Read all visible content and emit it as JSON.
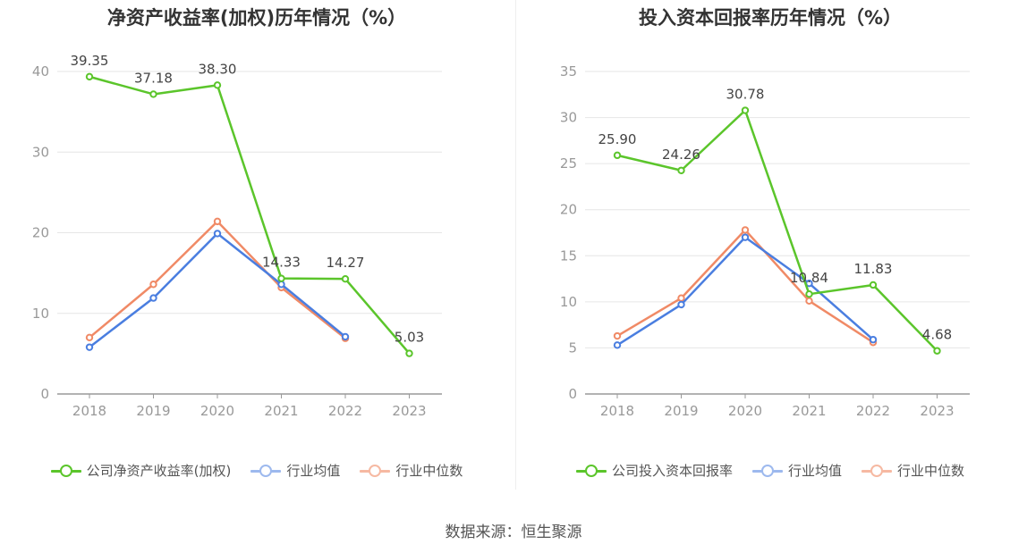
{
  "source": "数据来源：恒生聚源",
  "colors": {
    "company": "#5bc52b",
    "avg": "#4a7ee0",
    "median": "#f08a66"
  },
  "chart_data": [
    {
      "type": "line",
      "title": "净资产收益率(加权)历年情况（%）",
      "categories": [
        "2018",
        "2019",
        "2020",
        "2021",
        "2022",
        "2023"
      ],
      "ylim": [
        0,
        40
      ],
      "yticks": [
        0,
        10,
        20,
        30,
        40
      ],
      "grid": true,
      "legend_position": "bottom",
      "series": [
        {
          "name": "公司净资产收益率(加权)",
          "values": [
            39.35,
            37.18,
            38.3,
            14.33,
            14.27,
            5.03
          ],
          "labels": [
            "39.35",
            "37.18",
            "38.30",
            "14.33",
            "14.27",
            "5.03"
          ]
        },
        {
          "name": "行业均值",
          "values": [
            5.8,
            11.9,
            19.9,
            13.6,
            7.1,
            null
          ]
        },
        {
          "name": "行业中位数",
          "values": [
            7.0,
            13.6,
            21.4,
            13.2,
            6.9,
            null
          ]
        }
      ]
    },
    {
      "type": "line",
      "title": "投入资本回报率历年情况（%）",
      "categories": [
        "2018",
        "2019",
        "2020",
        "2021",
        "2022",
        "2023"
      ],
      "ylim": [
        0,
        35
      ],
      "yticks": [
        0,
        5,
        10,
        15,
        20,
        25,
        30,
        35
      ],
      "grid": true,
      "legend_position": "bottom",
      "series": [
        {
          "name": "公司投入资本回报率",
          "values": [
            25.9,
            24.26,
            30.78,
            10.84,
            11.83,
            4.68
          ],
          "labels": [
            "25.90",
            "24.26",
            "30.78",
            "10.84",
            "11.83",
            "4.68"
          ]
        },
        {
          "name": "行业均值",
          "values": [
            5.3,
            9.7,
            17.0,
            12.0,
            5.9,
            null
          ]
        },
        {
          "name": "行业中位数",
          "values": [
            6.3,
            10.4,
            17.8,
            10.1,
            5.6,
            null
          ]
        }
      ]
    }
  ]
}
